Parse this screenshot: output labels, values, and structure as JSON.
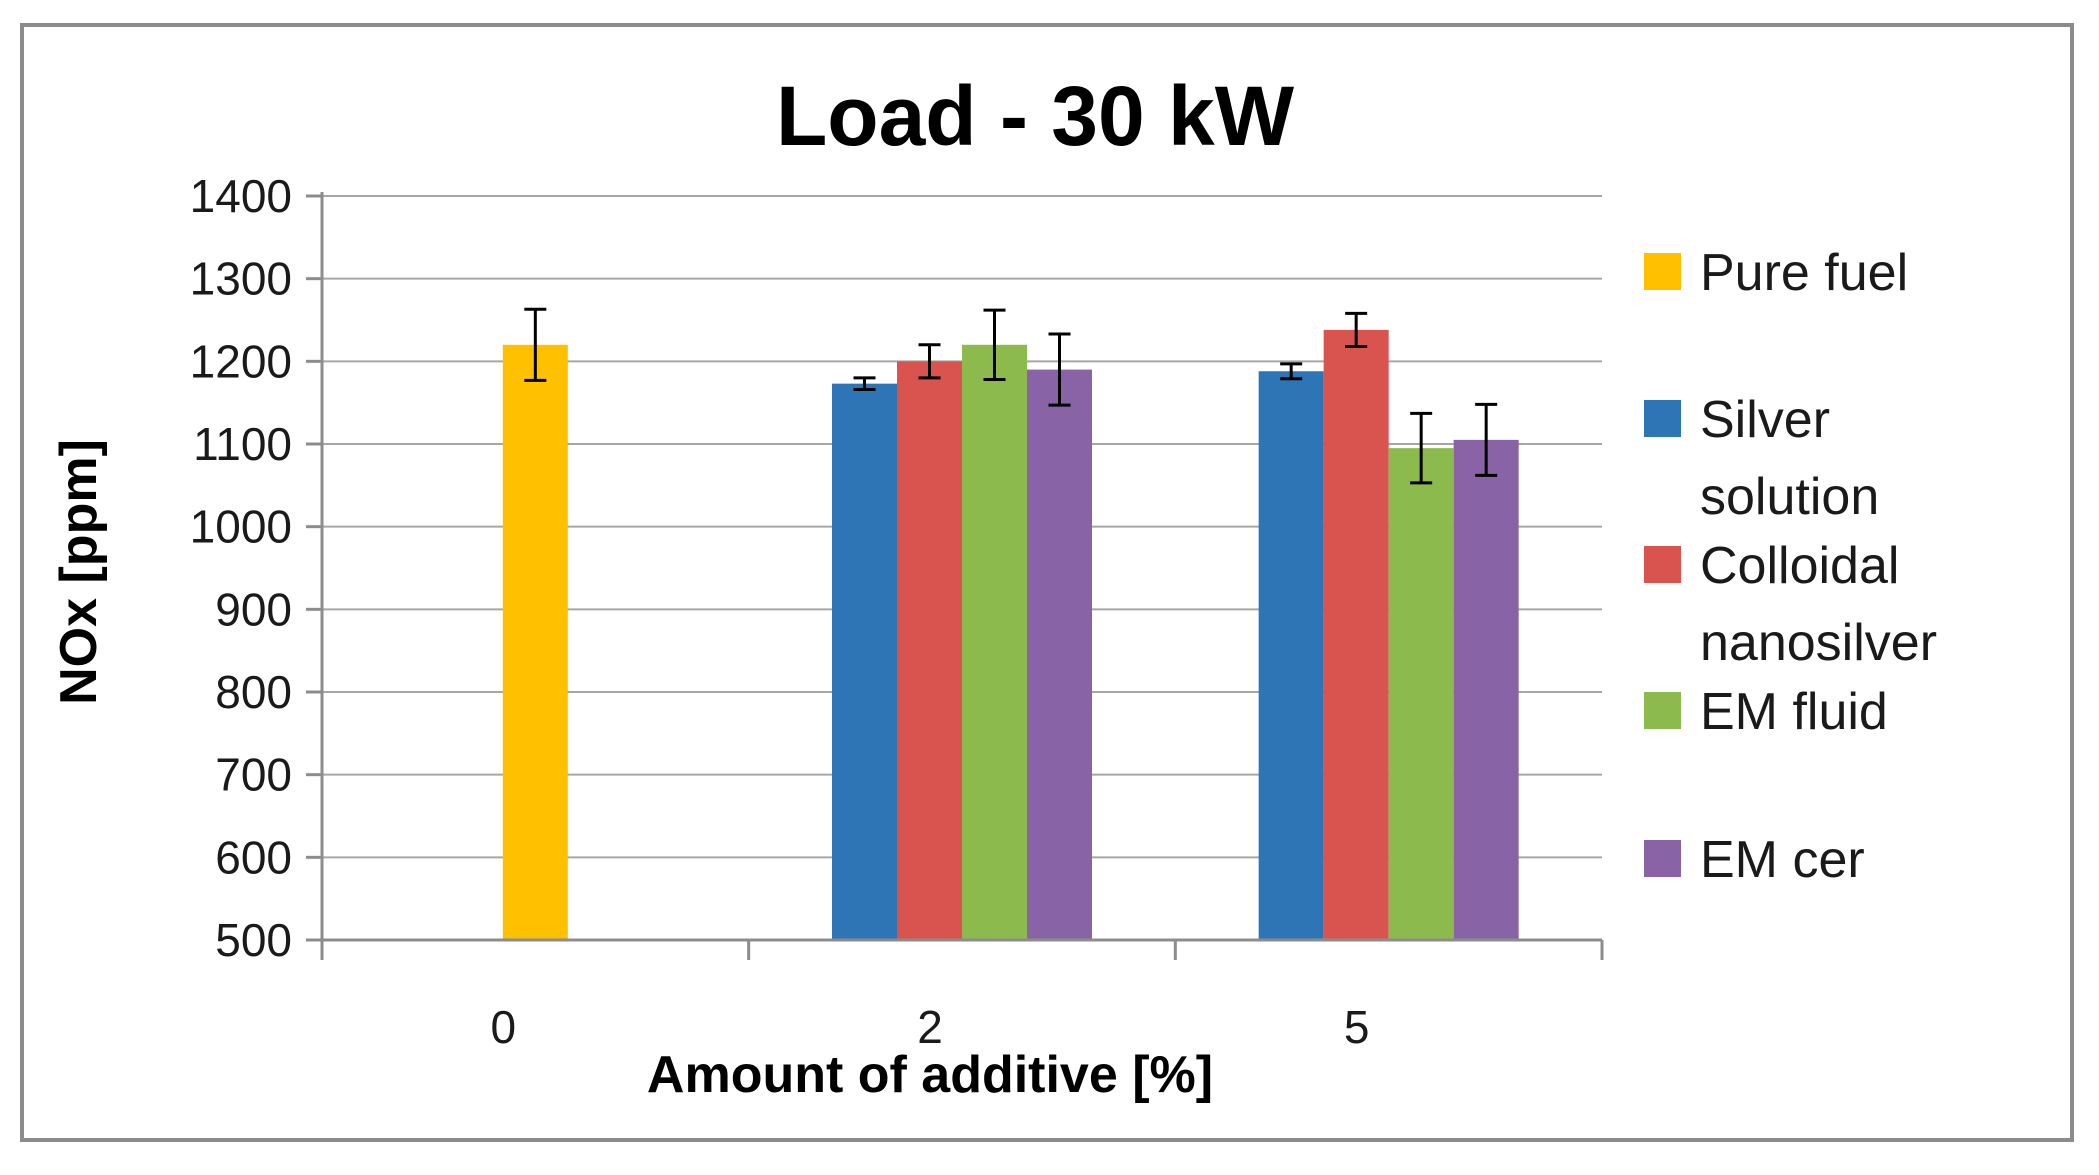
{
  "chart_data": {
    "type": "bar",
    "title": "Load - 30 kW",
    "xlabel": "Amount of additive [%]",
    "ylabel": "NOx [ppm]",
    "ylim": [
      500,
      1400
    ],
    "yticks": [
      500,
      600,
      700,
      800,
      900,
      1000,
      1100,
      1200,
      1300,
      1400
    ],
    "grid": true,
    "legend_position": "right",
    "categories": [
      "0",
      "2",
      "5"
    ],
    "series": [
      {
        "name": "Pure fuel",
        "color": "#FFC000",
        "values": [
          1220,
          null,
          null
        ],
        "errors": [
          43,
          null,
          null
        ]
      },
      {
        "name": "Silver solution",
        "color": "#2E75B6",
        "values": [
          null,
          1173,
          1188
        ],
        "errors": [
          null,
          7,
          9
        ]
      },
      {
        "name": "Colloidal nanosilver",
        "color": "#D9534F",
        "values": [
          null,
          1200,
          1238
        ],
        "errors": [
          null,
          20,
          20
        ]
      },
      {
        "name": "EM fluid",
        "color": "#8DBA4C",
        "values": [
          null,
          1220,
          1095
        ],
        "errors": [
          null,
          42,
          42
        ]
      },
      {
        "name": "EM cer",
        "color": "#8863A5",
        "values": [
          null,
          1190,
          1105
        ],
        "errors": [
          null,
          43,
          43
        ]
      }
    ],
    "legend_labels": [
      [
        "Pure fuel"
      ],
      [
        "Silver",
        "solution"
      ],
      [
        "Colloidal",
        "nanosilver"
      ],
      [
        "EM fluid"
      ],
      [
        "EM cer"
      ]
    ]
  }
}
